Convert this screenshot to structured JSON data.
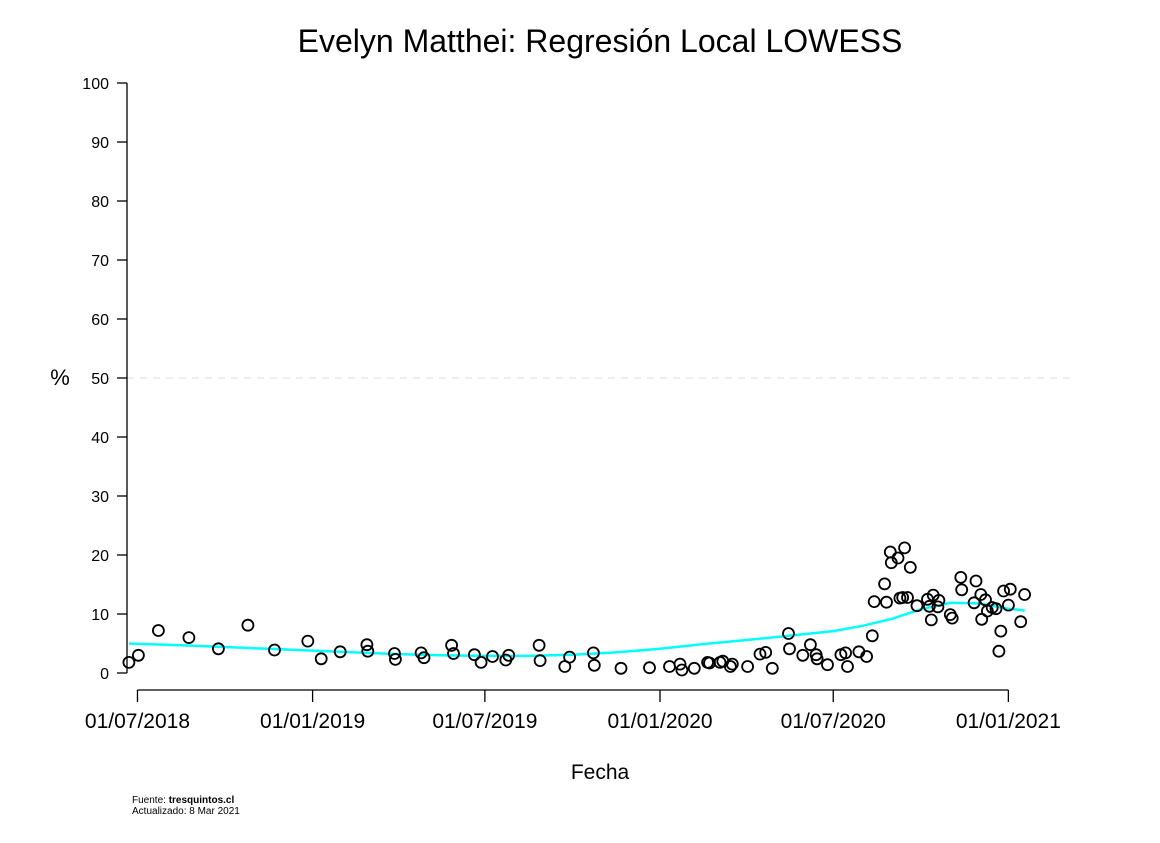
{
  "chart_data": {
    "type": "scatter",
    "title": "Evelyn Matthei: Regresión Local LOWESS",
    "xlabel": "Fecha",
    "ylabel": "%",
    "ylim": [
      0,
      100
    ],
    "yticks": [
      0,
      10,
      20,
      30,
      40,
      50,
      60,
      70,
      80,
      90,
      100
    ],
    "xlim": [
      "2018-06-20",
      "2021-03-12"
    ],
    "xticks": [
      {
        "date": "2018-07-01",
        "label": "01/07/2018"
      },
      {
        "date": "2019-01-01",
        "label": "01/01/2019"
      },
      {
        "date": "2019-07-01",
        "label": "01/07/2019"
      },
      {
        "date": "2020-01-01",
        "label": "01/01/2020"
      },
      {
        "date": "2020-07-01",
        "label": "01/07/2020"
      },
      {
        "date": "2021-01-01",
        "label": "01/01/2021"
      }
    ],
    "reference_line": {
      "y": 50,
      "style": "dashed"
    },
    "grid": false,
    "series": [
      {
        "type": "scatter",
        "color": "#000000",
        "points": [
          {
            "x": "2018-06-22",
            "y": 1.8
          },
          {
            "x": "2018-07-02",
            "y": 3.0
          },
          {
            "x": "2018-07-23",
            "y": 7.2
          },
          {
            "x": "2018-08-24",
            "y": 6.0
          },
          {
            "x": "2018-09-24",
            "y": 4.1
          },
          {
            "x": "2018-10-25",
            "y": 8.1
          },
          {
            "x": "2018-11-22",
            "y": 3.9
          },
          {
            "x": "2018-12-27",
            "y": 5.4
          },
          {
            "x": "2019-01-10",
            "y": 2.4
          },
          {
            "x": "2019-01-30",
            "y": 3.6
          },
          {
            "x": "2019-02-27",
            "y": 4.8
          },
          {
            "x": "2019-02-28",
            "y": 3.7
          },
          {
            "x": "2019-03-28",
            "y": 3.3
          },
          {
            "x": "2019-03-29",
            "y": 2.3
          },
          {
            "x": "2019-04-25",
            "y": 3.4
          },
          {
            "x": "2019-04-28",
            "y": 2.6
          },
          {
            "x": "2019-05-27",
            "y": 4.7
          },
          {
            "x": "2019-05-29",
            "y": 3.3
          },
          {
            "x": "2019-06-20",
            "y": 3.1
          },
          {
            "x": "2019-06-27",
            "y": 1.8
          },
          {
            "x": "2019-07-09",
            "y": 2.8
          },
          {
            "x": "2019-07-23",
            "y": 2.2
          },
          {
            "x": "2019-07-26",
            "y": 3.0
          },
          {
            "x": "2019-08-27",
            "y": 4.7
          },
          {
            "x": "2019-08-28",
            "y": 2.1
          },
          {
            "x": "2019-09-23",
            "y": 1.1
          },
          {
            "x": "2019-09-28",
            "y": 2.7
          },
          {
            "x": "2019-10-23",
            "y": 3.4
          },
          {
            "x": "2019-10-24",
            "y": 1.3
          },
          {
            "x": "2019-11-21",
            "y": 0.8
          },
          {
            "x": "2019-12-21",
            "y": 0.9
          },
          {
            "x": "2020-01-11",
            "y": 1.1
          },
          {
            "x": "2020-01-22",
            "y": 1.5
          },
          {
            "x": "2020-01-24",
            "y": 0.5
          },
          {
            "x": "2020-02-06",
            "y": 0.8
          },
          {
            "x": "2020-02-20",
            "y": 1.8
          },
          {
            "x": "2020-02-22",
            "y": 1.7
          },
          {
            "x": "2020-03-04",
            "y": 1.8
          },
          {
            "x": "2020-03-07",
            "y": 2.0
          },
          {
            "x": "2020-03-15",
            "y": 1.1
          },
          {
            "x": "2020-03-17",
            "y": 1.5
          },
          {
            "x": "2020-04-02",
            "y": 1.1
          },
          {
            "x": "2020-04-15",
            "y": 3.2
          },
          {
            "x": "2020-04-21",
            "y": 3.5
          },
          {
            "x": "2020-04-28",
            "y": 0.8
          },
          {
            "x": "2020-05-15",
            "y": 6.7
          },
          {
            "x": "2020-05-16",
            "y": 4.1
          },
          {
            "x": "2020-05-30",
            "y": 3.0
          },
          {
            "x": "2020-06-07",
            "y": 4.8
          },
          {
            "x": "2020-06-13",
            "y": 3.1
          },
          {
            "x": "2020-06-14",
            "y": 2.4
          },
          {
            "x": "2020-06-25",
            "y": 1.4
          },
          {
            "x": "2020-07-09",
            "y": 3.1
          },
          {
            "x": "2020-07-14",
            "y": 3.4
          },
          {
            "x": "2020-07-16",
            "y": 1.1
          },
          {
            "x": "2020-07-28",
            "y": 3.6
          },
          {
            "x": "2020-08-05",
            "y": 2.8
          },
          {
            "x": "2020-08-11",
            "y": 6.3
          },
          {
            "x": "2020-08-13",
            "y": 12.1
          },
          {
            "x": "2020-08-24",
            "y": 15.1
          },
          {
            "x": "2020-08-26",
            "y": 12.0
          },
          {
            "x": "2020-08-30",
            "y": 20.5
          },
          {
            "x": "2020-08-31",
            "y": 18.7
          },
          {
            "x": "2020-09-07",
            "y": 19.5
          },
          {
            "x": "2020-09-09",
            "y": 12.7
          },
          {
            "x": "2020-09-12",
            "y": 12.8
          },
          {
            "x": "2020-09-14",
            "y": 21.2
          },
          {
            "x": "2020-09-17",
            "y": 12.8
          },
          {
            "x": "2020-09-20",
            "y": 17.9
          },
          {
            "x": "2020-09-27",
            "y": 11.4
          },
          {
            "x": "2020-10-08",
            "y": 12.5
          },
          {
            "x": "2020-10-10",
            "y": 11.3
          },
          {
            "x": "2020-10-12",
            "y": 9.0
          },
          {
            "x": "2020-10-14",
            "y": 13.2
          },
          {
            "x": "2020-10-20",
            "y": 12.3
          },
          {
            "x": "2020-10-19",
            "y": 11.2
          },
          {
            "x": "2020-11-01",
            "y": 9.9
          },
          {
            "x": "2020-11-03",
            "y": 9.3
          },
          {
            "x": "2020-11-12",
            "y": 16.2
          },
          {
            "x": "2020-11-13",
            "y": 14.1
          },
          {
            "x": "2020-11-26",
            "y": 11.9
          },
          {
            "x": "2020-11-28",
            "y": 15.6
          },
          {
            "x": "2020-12-03",
            "y": 13.3
          },
          {
            "x": "2020-12-04",
            "y": 9.1
          },
          {
            "x": "2020-12-08",
            "y": 12.4
          },
          {
            "x": "2020-12-10",
            "y": 10.5
          },
          {
            "x": "2020-12-15",
            "y": 11.1
          },
          {
            "x": "2020-12-19",
            "y": 10.9
          },
          {
            "x": "2020-12-22",
            "y": 3.7
          },
          {
            "x": "2020-12-24",
            "y": 7.1
          },
          {
            "x": "2020-12-27",
            "y": 13.9
          },
          {
            "x": "2021-01-01",
            "y": 11.5
          },
          {
            "x": "2021-01-03",
            "y": 14.2
          },
          {
            "x": "2021-01-14",
            "y": 8.7
          },
          {
            "x": "2021-01-18",
            "y": 13.3
          }
        ]
      },
      {
        "type": "line",
        "color": "#00ffff",
        "points": [
          {
            "x": "2018-06-22",
            "y": 5.0
          },
          {
            "x": "2018-08-15",
            "y": 4.7
          },
          {
            "x": "2018-10-01",
            "y": 4.4
          },
          {
            "x": "2018-11-15",
            "y": 4.1
          },
          {
            "x": "2019-01-01",
            "y": 3.8
          },
          {
            "x": "2019-02-15",
            "y": 3.5
          },
          {
            "x": "2019-04-01",
            "y": 3.2
          },
          {
            "x": "2019-05-15",
            "y": 3.0
          },
          {
            "x": "2019-07-01",
            "y": 2.9
          },
          {
            "x": "2019-08-15",
            "y": 2.9
          },
          {
            "x": "2019-10-01",
            "y": 3.1
          },
          {
            "x": "2019-11-15",
            "y": 3.5
          },
          {
            "x": "2020-01-01",
            "y": 4.1
          },
          {
            "x": "2020-02-15",
            "y": 4.9
          },
          {
            "x": "2020-04-01",
            "y": 5.6
          },
          {
            "x": "2020-05-15",
            "y": 6.3
          },
          {
            "x": "2020-07-01",
            "y": 7.1
          },
          {
            "x": "2020-08-01",
            "y": 8.0
          },
          {
            "x": "2020-09-01",
            "y": 9.2
          },
          {
            "x": "2020-10-01",
            "y": 10.8
          },
          {
            "x": "2020-11-01",
            "y": 11.9
          },
          {
            "x": "2020-12-01",
            "y": 11.8
          },
          {
            "x": "2021-01-01",
            "y": 10.9
          },
          {
            "x": "2021-01-18",
            "y": 10.6
          }
        ]
      }
    ]
  },
  "footer": {
    "source_prefix": "Fuente: ",
    "source_name": "tresquintos.cl",
    "updated": "Actualizado: 8 Mar 2021"
  }
}
